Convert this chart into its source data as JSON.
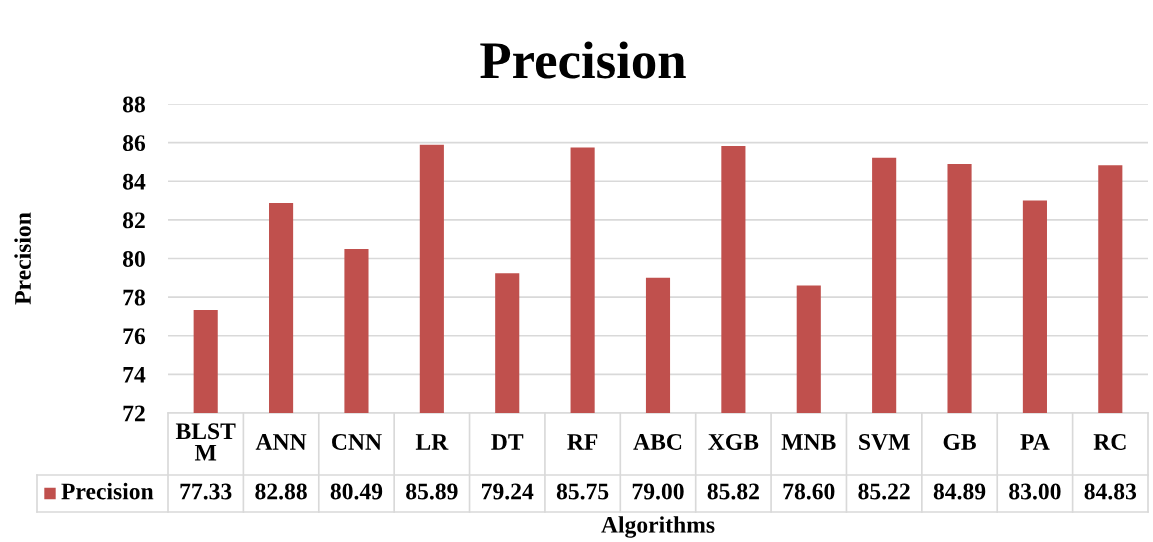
{
  "chart_data": {
    "type": "bar",
    "title": "Precision",
    "xlabel": "Algorithms",
    "ylabel": "Precision",
    "categories": [
      "BLSTM",
      "ANN",
      "CNN",
      "LR",
      "DT",
      "RF",
      "ABC",
      "XGB",
      "MNB",
      "SVM",
      "GB",
      "PA",
      "RC"
    ],
    "series": [
      {
        "name": "Precision",
        "color": "#c0504d",
        "values": [
          77.33,
          82.88,
          80.49,
          85.89,
          79.24,
          85.75,
          79.0,
          85.82,
          78.6,
          85.22,
          84.89,
          83.0,
          84.83
        ],
        "value_labels": [
          "77.33",
          "82.88",
          "80.49",
          "85.89",
          "79.24",
          "85.75",
          "79.00",
          "85.82",
          "78.60",
          "85.22",
          "84.89",
          "83.00",
          "84.83"
        ]
      }
    ],
    "ylim": [
      72,
      88
    ],
    "yticks": [
      72,
      74,
      76,
      78,
      80,
      82,
      84,
      86,
      88
    ],
    "grid": "y",
    "legend": "bottom"
  }
}
